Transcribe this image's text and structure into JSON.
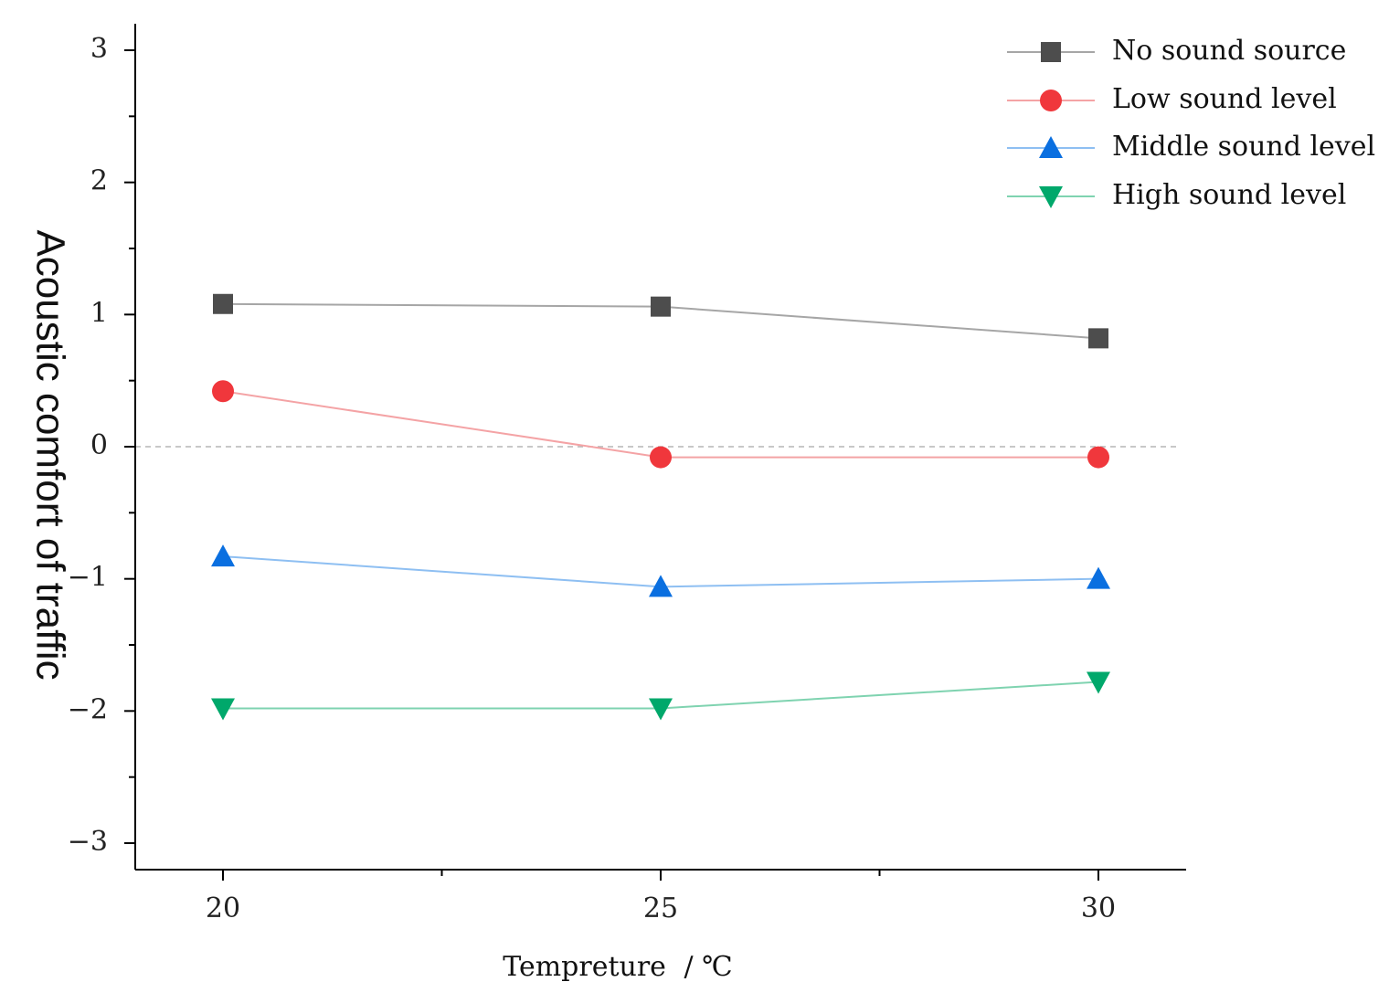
{
  "chart_data": {
    "type": "line",
    "title": "",
    "xlabel": "Tempreture",
    "xlabel_separator": "/",
    "xlabel_unit": "℃",
    "ylabel": "Acoustic comfort of traffic",
    "x": [
      20,
      25,
      30
    ],
    "xlim": [
      19,
      31
    ],
    "ylim": [
      -3.2,
      3.2
    ],
    "xticks": [
      20,
      25,
      30
    ],
    "xtick_labels": [
      "20",
      "25",
      "30"
    ],
    "yticks": [
      3,
      2,
      1,
      0,
      -1,
      -2,
      -3
    ],
    "ytick_labels": [
      "3",
      "2",
      "1",
      "0",
      "−1",
      "−2",
      "−3"
    ],
    "reference_line": 0,
    "grid": false,
    "legend_position": "top-right",
    "series": [
      {
        "name": "No sound source",
        "marker": "square",
        "color": "#4d4d4d",
        "line_color": "#a6a6a6",
        "values": [
          1.08,
          1.06,
          0.82
        ]
      },
      {
        "name": "Low sound level",
        "marker": "circle",
        "color": "#f0373c",
        "line_color": "#f4a3a5",
        "values": [
          0.42,
          -0.08,
          -0.08
        ]
      },
      {
        "name": "Middle sound level",
        "marker": "triangle-up",
        "color": "#0a6fe0",
        "line_color": "#8ebff2",
        "values": [
          -0.83,
          -1.06,
          -1.0
        ]
      },
      {
        "name": "High sound level",
        "marker": "triangle-down",
        "color": "#00a86b",
        "line_color": "#7fd3b0",
        "values": [
          -1.98,
          -1.98,
          -1.78
        ]
      }
    ]
  }
}
